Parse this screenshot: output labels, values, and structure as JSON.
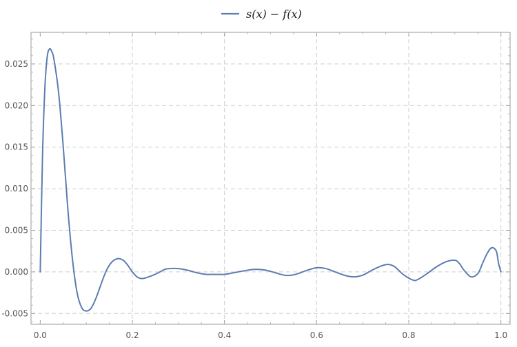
{
  "chart_data": {
    "type": "line",
    "title": "",
    "xlabel": "",
    "ylabel": "",
    "xlim": [
      -0.02,
      1.02
    ],
    "ylim": [
      -0.0063,
      0.0288
    ],
    "grid": true,
    "legend_position": "top-center",
    "x_ticks": [
      "0.0",
      "0.2",
      "0.4",
      "0.6",
      "0.8",
      "1.0"
    ],
    "y_ticks": [
      "-0.005",
      "0.000",
      "0.005",
      "0.010",
      "0.015",
      "0.020",
      "0.025"
    ],
    "series": [
      {
        "name": "s(x) − f(x)",
        "color": "#5b7db1",
        "x": [
          0.0,
          0.005,
          0.01,
          0.015,
          0.02,
          0.025,
          0.03,
          0.04,
          0.05,
          0.06,
          0.07,
          0.08,
          0.09,
          0.1,
          0.11,
          0.12,
          0.13,
          0.14,
          0.15,
          0.16,
          0.17,
          0.18,
          0.19,
          0.2,
          0.21,
          0.22,
          0.23,
          0.245,
          0.26,
          0.27,
          0.28,
          0.3,
          0.32,
          0.34,
          0.36,
          0.38,
          0.4,
          0.42,
          0.44,
          0.465,
          0.49,
          0.51,
          0.53,
          0.545,
          0.56,
          0.58,
          0.6,
          0.62,
          0.64,
          0.66,
          0.68,
          0.7,
          0.72,
          0.74,
          0.755,
          0.77,
          0.79,
          0.81,
          0.82,
          0.84,
          0.86,
          0.88,
          0.9,
          0.91,
          0.92,
          0.935,
          0.95,
          0.96,
          0.97,
          0.98,
          0.99,
          0.995,
          1.0
        ],
        "values": [
          0.0,
          0.014,
          0.022,
          0.0258,
          0.0268,
          0.0265,
          0.0255,
          0.0215,
          0.015,
          0.0075,
          0.0015,
          -0.0025,
          -0.0043,
          -0.0047,
          -0.0044,
          -0.0033,
          -0.0018,
          -0.0003,
          0.0008,
          0.0014,
          0.0016,
          0.0014,
          0.0008,
          0.0,
          -0.0006,
          -0.0008,
          -0.0007,
          -0.0004,
          0.0,
          0.0003,
          0.0004,
          0.0004,
          0.0002,
          -0.0001,
          -0.0003,
          -0.0003,
          -0.0003,
          -0.0001,
          0.0001,
          0.0003,
          0.0002,
          -0.0001,
          -0.0004,
          -0.0004,
          -0.0002,
          0.0002,
          0.0005,
          0.0004,
          0.0,
          -0.0004,
          -0.0006,
          -0.0004,
          0.0002,
          0.0007,
          0.0009,
          0.0006,
          -0.0004,
          -0.001,
          -0.0009,
          -0.0002,
          0.0006,
          0.0012,
          0.0014,
          0.001,
          0.0002,
          -0.0006,
          -0.0002,
          0.001,
          0.0022,
          0.0029,
          0.0025,
          0.001,
          0.0
        ]
      }
    ]
  }
}
